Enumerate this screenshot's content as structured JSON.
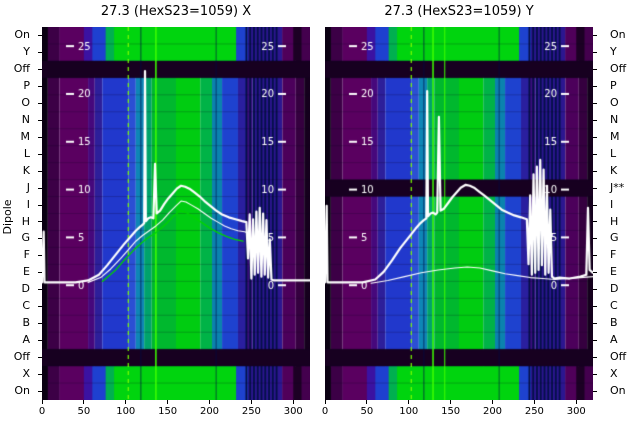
{
  "figure": {
    "ylabel": "Dipole",
    "background": "#ffffff",
    "x_ticks": [
      0,
      50,
      100,
      150,
      200,
      250,
      300
    ],
    "x_range": [
      0,
      320
    ],
    "inner_y_ticks": [
      25,
      20,
      15,
      10,
      5,
      0
    ],
    "inner_y_range": [
      -12,
      27
    ],
    "left_row_labels": [
      "On",
      "Y",
      "Off",
      "P",
      "O",
      "N",
      "M",
      "L",
      "K",
      "J",
      "I",
      "H",
      "G",
      "F",
      "E",
      "D",
      "C",
      "B",
      "A",
      "Off",
      "X",
      "On"
    ],
    "right_row_labels": [
      "On",
      "Y",
      "Off",
      "P",
      "O",
      "N",
      "M",
      "L",
      "K",
      "J**",
      "I",
      "H",
      "G",
      "F",
      "E",
      "D",
      "C",
      "B",
      "A",
      "Off",
      "X",
      "On"
    ],
    "colors": {
      "curve": "#ffffff",
      "green_curve": "#00d400",
      "stripe": "#041048",
      "dark_row": "#170020",
      "tick_text": "#ffffff",
      "axis_text": "#000000",
      "vline_lime": "#7dff00"
    }
  },
  "chart_data": [
    {
      "type": "heatmap+lines",
      "title": "27.3 (HexS23=1059) X",
      "bands_main": [
        [
          0,
          7,
          "#0a0012"
        ],
        [
          7,
          21,
          "#3c0046"
        ],
        [
          21,
          55,
          "#5a0060"
        ],
        [
          55,
          63,
          "#46087c"
        ],
        [
          63,
          72,
          "#2d1f9a"
        ],
        [
          72,
          103,
          "#2138cc"
        ],
        [
          103,
          112,
          "#2b4fd4"
        ],
        [
          112,
          122,
          "#0e86b6"
        ],
        [
          122,
          131,
          "#00a36b"
        ],
        [
          131,
          160,
          "#00b82e"
        ],
        [
          160,
          189,
          "#00cc11"
        ],
        [
          189,
          203,
          "#00b347"
        ],
        [
          203,
          215,
          "#0b82ae"
        ],
        [
          215,
          234,
          "#1e42cf"
        ],
        [
          234,
          244,
          "#2a1f9f"
        ],
        [
          244,
          251,
          "#3d0d80"
        ],
        [
          251,
          287,
          "#2c1690"
        ],
        [
          287,
          303,
          "#4c005b"
        ],
        [
          303,
          313,
          "#35003f"
        ],
        [
          313,
          320,
          "#15001d"
        ]
      ],
      "bands_edge": [
        [
          0,
          7,
          "#0a0012"
        ],
        [
          7,
          21,
          "#3c0046"
        ],
        [
          21,
          50,
          "#5a0060"
        ],
        [
          50,
          60,
          "#3b12a2"
        ],
        [
          60,
          76,
          "#1e40d0"
        ],
        [
          76,
          86,
          "#00b050"
        ],
        [
          86,
          232,
          "#00d40e"
        ],
        [
          232,
          246,
          "#1e42cf"
        ],
        [
          246,
          287,
          "#2c1690"
        ],
        [
          287,
          300,
          "#50005a"
        ],
        [
          300,
          310,
          "#1c0024"
        ],
        [
          310,
          320,
          "#44004e"
        ]
      ],
      "dark_rows": [
        2,
        19
      ],
      "stripe_region": [
        243,
        281
      ],
      "vlines": [
        {
          "x": 103,
          "color": "#7dff00",
          "dash": true,
          "w": 1.2
        },
        {
          "x": 136,
          "color": "#3fff00",
          "dash": false,
          "w": 1.5
        },
        {
          "x": 118,
          "color": "rgba(0,10,70,0.45)",
          "dash": false,
          "w": 1.5
        },
        {
          "x": 208,
          "color": "rgba(0,10,70,0.40)",
          "dash": false,
          "w": 1.5
        }
      ],
      "series": [
        {
          "name": "secondary-profile",
          "color": "#ffffff",
          "width": 1.1,
          "points": [
            [
              55,
              0.3
            ],
            [
              70,
              0.8
            ],
            [
              82,
              1.7
            ],
            [
              94,
              2.8
            ],
            [
              104,
              3.8
            ],
            [
              112,
              4.6
            ],
            [
              120,
              5.2
            ],
            [
              128,
              5.7
            ],
            [
              136,
              6.2
            ],
            [
              144,
              6.8
            ],
            [
              152,
              7.6
            ],
            [
              160,
              8.3
            ],
            [
              166,
              8.8
            ],
            [
              172,
              8.7
            ],
            [
              178,
              8.4
            ],
            [
              186,
              8.0
            ],
            [
              194,
              7.5
            ],
            [
              202,
              7.0
            ],
            [
              210,
              6.6
            ],
            [
              218,
              6.2
            ],
            [
              226,
              5.9
            ],
            [
              234,
              5.7
            ],
            [
              242,
              5.6
            ],
            [
              245,
              5.5
            ]
          ]
        },
        {
          "name": "green-profile",
          "color": "#00d400",
          "width": 1.3,
          "points": [
            [
              72,
              0.4
            ],
            [
              88,
              1.6
            ],
            [
              100,
              2.8
            ],
            [
              112,
              3.9
            ],
            [
              124,
              4.8
            ],
            [
              136,
              5.5
            ],
            [
              148,
              6.4
            ],
            [
              158,
              7.3
            ],
            [
              165,
              7.8
            ],
            [
              172,
              7.6
            ],
            [
              180,
              7.2
            ],
            [
              190,
              6.6
            ],
            [
              200,
              6.0
            ],
            [
              210,
              5.5
            ],
            [
              220,
              5.1
            ],
            [
              230,
              4.8
            ],
            [
              240,
              4.6
            ]
          ]
        },
        {
          "name": "main-profile",
          "color": "#ffffff",
          "width": 2.2,
          "points": [
            [
              0,
              0.3
            ],
            [
              2,
              5.6
            ],
            [
              3,
              0.3
            ],
            [
              40,
              0.3
            ],
            [
              55,
              0.5
            ],
            [
              68,
              1.1
            ],
            [
              78,
              2.1
            ],
            [
              88,
              3.2
            ],
            [
              98,
              4.3
            ],
            [
              106,
              5.1
            ],
            [
              112,
              5.7
            ],
            [
              117,
              6.1
            ],
            [
              120,
              6.3
            ],
            [
              122,
              6.5
            ],
            [
              123,
              22.4
            ],
            [
              124,
              6.7
            ],
            [
              127,
              7.0
            ],
            [
              130,
              7.1
            ],
            [
              133,
              7.0
            ],
            [
              135,
              12.7
            ],
            [
              137,
              7.5
            ],
            [
              141,
              7.8
            ],
            [
              146,
              8.5
            ],
            [
              151,
              9.1
            ],
            [
              156,
              9.6
            ],
            [
              161,
              10.1
            ],
            [
              166,
              10.4
            ],
            [
              171,
              10.3
            ],
            [
              176,
              10.1
            ],
            [
              182,
              9.7
            ],
            [
              188,
              9.3
            ],
            [
              194,
              8.8
            ],
            [
              201,
              8.3
            ],
            [
              208,
              7.8
            ],
            [
              215,
              7.4
            ],
            [
              223,
              7.1
            ],
            [
              231,
              6.9
            ],
            [
              239,
              6.7
            ],
            [
              244,
              6.6
            ],
            [
              246,
              2.8
            ],
            [
              248,
              7.4
            ],
            [
              250,
              0.7
            ],
            [
              252,
              6.9
            ],
            [
              254,
              1.1
            ],
            [
              256,
              7.7
            ],
            [
              258,
              1.3
            ],
            [
              260,
              8.1
            ],
            [
              262,
              0.9
            ],
            [
              264,
              7.5
            ],
            [
              266,
              1.1
            ],
            [
              268,
              6.8
            ],
            [
              270,
              0.8
            ],
            [
              272,
              4.8
            ],
            [
              274,
              0.6
            ],
            [
              277,
              0.5
            ],
            [
              290,
              0.5
            ],
            [
              320,
              0.5
            ]
          ]
        }
      ]
    },
    {
      "type": "heatmap+lines",
      "title": "27.3 (HexS23=1059) Y",
      "bands_main": [
        [
          0,
          7,
          "#0a0012"
        ],
        [
          7,
          21,
          "#3c0046"
        ],
        [
          21,
          55,
          "#5a0060"
        ],
        [
          55,
          63,
          "#46087c"
        ],
        [
          63,
          72,
          "#2d1f9a"
        ],
        [
          72,
          103,
          "#2138cc"
        ],
        [
          103,
          112,
          "#2b4fd4"
        ],
        [
          112,
          122,
          "#0e86b6"
        ],
        [
          122,
          131,
          "#00a36b"
        ],
        [
          131,
          160,
          "#00b82e"
        ],
        [
          160,
          189,
          "#00cc11"
        ],
        [
          189,
          203,
          "#00b347"
        ],
        [
          203,
          215,
          "#0b82ae"
        ],
        [
          215,
          234,
          "#1e42cf"
        ],
        [
          234,
          244,
          "#2a1f9f"
        ],
        [
          244,
          251,
          "#3d0d80"
        ],
        [
          251,
          287,
          "#2c1690"
        ],
        [
          287,
          303,
          "#4c005b"
        ],
        [
          303,
          313,
          "#35003f"
        ],
        [
          313,
          320,
          "#15001d"
        ]
      ],
      "bands_edge": [
        [
          0,
          7,
          "#0a0012"
        ],
        [
          7,
          21,
          "#3c0046"
        ],
        [
          21,
          50,
          "#5a0060"
        ],
        [
          50,
          60,
          "#3b12a2"
        ],
        [
          60,
          76,
          "#1e40d0"
        ],
        [
          76,
          86,
          "#00b050"
        ],
        [
          86,
          232,
          "#00d40e"
        ],
        [
          232,
          246,
          "#1e42cf"
        ],
        [
          246,
          287,
          "#2c1690"
        ],
        [
          287,
          300,
          "#50005a"
        ],
        [
          300,
          310,
          "#1c0024"
        ],
        [
          310,
          320,
          "#44004e"
        ]
      ],
      "dark_rows": [
        2,
        9,
        19
      ],
      "stripe_region": [
        243,
        281
      ],
      "vlines": [
        {
          "x": 103,
          "color": "#7dff00",
          "dash": true,
          "w": 1.2
        },
        {
          "x": 129,
          "color": "#3fff00",
          "dash": false,
          "w": 1.5
        },
        {
          "x": 143,
          "color": "#3fff00",
          "dash": false,
          "w": 1.0
        },
        {
          "x": 118,
          "color": "rgba(0,10,70,0.45)",
          "dash": false,
          "w": 1.5
        },
        {
          "x": 208,
          "color": "rgba(0,10,70,0.40)",
          "dash": false,
          "w": 1.5
        }
      ],
      "series": [
        {
          "name": "flat-profile",
          "color": "#ffffff",
          "width": 1.1,
          "points": [
            [
              55,
              0.2
            ],
            [
              75,
              0.5
            ],
            [
              95,
              0.9
            ],
            [
              115,
              1.3
            ],
            [
              135,
              1.6
            ],
            [
              155,
              1.8
            ],
            [
              170,
              1.9
            ],
            [
              185,
              1.8
            ],
            [
              200,
              1.5
            ],
            [
              215,
              1.2
            ],
            [
              230,
              1.0
            ],
            [
              245,
              0.8
            ],
            [
              260,
              0.7
            ],
            [
              275,
              0.6
            ],
            [
              290,
              0.7
            ],
            [
              305,
              0.8
            ],
            [
              320,
              0.9
            ]
          ]
        },
        {
          "name": "main-profile",
          "color": "#ffffff",
          "width": 2.2,
          "points": [
            [
              0,
              0.3
            ],
            [
              2,
              8.3
            ],
            [
              3,
              0.3
            ],
            [
              45,
              0.3
            ],
            [
              60,
              0.6
            ],
            [
              70,
              1.4
            ],
            [
              80,
              2.6
            ],
            [
              90,
              3.9
            ],
            [
              100,
              5.0
            ],
            [
              108,
              5.9
            ],
            [
              114,
              6.5
            ],
            [
              118,
              6.8
            ],
            [
              121,
              7.0
            ],
            [
              122,
              20.3
            ],
            [
              123,
              7.2
            ],
            [
              126,
              7.5
            ],
            [
              129,
              7.6
            ],
            [
              132,
              7.4
            ],
            [
              134,
              7.6
            ],
            [
              136,
              17.6
            ],
            [
              138,
              7.8
            ],
            [
              142,
              8.0
            ],
            [
              147,
              8.6
            ],
            [
              152,
              9.2
            ],
            [
              157,
              9.7
            ],
            [
              162,
              10.2
            ],
            [
              168,
              10.5
            ],
            [
              173,
              10.4
            ],
            [
              178,
              10.2
            ],
            [
              184,
              9.8
            ],
            [
              190,
              9.4
            ],
            [
              197,
              8.9
            ],
            [
              204,
              8.4
            ],
            [
              211,
              7.9
            ],
            [
              218,
              7.6
            ],
            [
              226,
              7.3
            ],
            [
              234,
              7.1
            ],
            [
              241,
              6.9
            ],
            [
              243,
              2.2
            ],
            [
              245,
              9.4
            ],
            [
              247,
              1.1
            ],
            [
              249,
              11.6
            ],
            [
              251,
              1.3
            ],
            [
              253,
              12.4
            ],
            [
              255,
              1.6
            ],
            [
              257,
              13.1
            ],
            [
              259,
              2.1
            ],
            [
              261,
              12.1
            ],
            [
              263,
              1.1
            ],
            [
              265,
              10.4
            ],
            [
              267,
              1.3
            ],
            [
              269,
              7.9
            ],
            [
              271,
              0.9
            ],
            [
              274,
              0.7
            ],
            [
              280,
              0.8
            ],
            [
              292,
              0.7
            ],
            [
              305,
              0.9
            ],
            [
              312,
              1.1
            ],
            [
              314,
              8.1
            ],
            [
              316,
              1.6
            ],
            [
              320,
              1.3
            ]
          ]
        }
      ]
    }
  ]
}
